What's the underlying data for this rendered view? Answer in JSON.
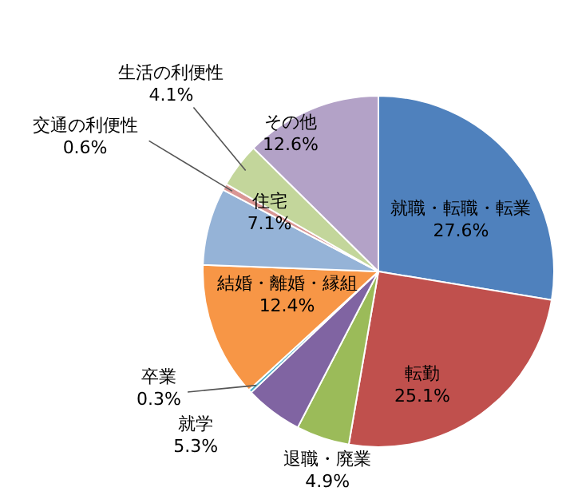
{
  "chart_data": {
    "type": "pie",
    "categories": [
      "就職・転職・転業",
      "転勤",
      "退職・廃業",
      "就学",
      "卒業",
      "結婚・離婚・縁組",
      "住宅",
      "交通の利便性",
      "生活の利便性",
      "その他"
    ],
    "values": [
      27.6,
      25.1,
      4.9,
      5.3,
      0.3,
      12.4,
      7.1,
      0.6,
      4.1,
      12.6
    ],
    "colors": [
      "#4f81bd",
      "#c0504d",
      "#9bbb59",
      "#8064a2",
      "#4bacc6",
      "#f79646",
      "#95b3d7",
      "#d99694",
      "#c3d69b",
      "#b3a2c7"
    ],
    "value_labels": [
      "27.6%",
      "25.1%",
      "4.9%",
      "5.3%",
      "0.3%",
      "12.4%",
      "7.1%",
      "0.6%",
      "4.1%",
      "12.6%"
    ]
  }
}
